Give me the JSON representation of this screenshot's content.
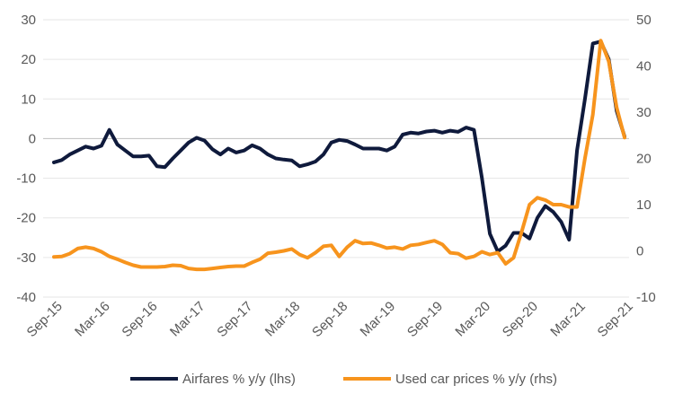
{
  "chart_data": {
    "type": "line",
    "x_ticks": [
      "Sep-15",
      "Mar-16",
      "Sep-16",
      "Mar-17",
      "Sep-17",
      "Mar-18",
      "Sep-18",
      "Mar-19",
      "Sep-19",
      "Mar-20",
      "Sep-20",
      "Mar-21",
      "Sep-21"
    ],
    "left_axis": {
      "ticks": [
        30,
        20,
        10,
        0,
        -10,
        -20,
        -30,
        -40
      ],
      "range": [
        -40,
        30
      ]
    },
    "right_axis": {
      "ticks": [
        50,
        40,
        30,
        20,
        10,
        0,
        -10
      ],
      "range": [
        -10,
        50
      ]
    },
    "grid": "horizontal",
    "zero_line": true,
    "legend_position": "bottom",
    "x": [
      "Sep-15",
      "Oct-15",
      "Nov-15",
      "Dec-15",
      "Jan-16",
      "Feb-16",
      "Mar-16",
      "Apr-16",
      "May-16",
      "Jun-16",
      "Jul-16",
      "Aug-16",
      "Sep-16",
      "Oct-16",
      "Nov-16",
      "Dec-16",
      "Jan-17",
      "Feb-17",
      "Mar-17",
      "Apr-17",
      "May-17",
      "Jun-17",
      "Jul-17",
      "Aug-17",
      "Sep-17",
      "Oct-17",
      "Nov-17",
      "Dec-17",
      "Jan-18",
      "Feb-18",
      "Mar-18",
      "Apr-18",
      "May-18",
      "Jun-18",
      "Jul-18",
      "Aug-18",
      "Sep-18",
      "Oct-18",
      "Nov-18",
      "Dec-18",
      "Jan-19",
      "Feb-19",
      "Mar-19",
      "Apr-19",
      "May-19",
      "Jun-19",
      "Jul-19",
      "Aug-19",
      "Sep-19",
      "Oct-19",
      "Nov-19",
      "Dec-19",
      "Jan-20",
      "Feb-20",
      "Mar-20",
      "Apr-20",
      "May-20",
      "Jun-20",
      "Jul-20",
      "Aug-20",
      "Sep-20",
      "Oct-20",
      "Nov-20",
      "Dec-20",
      "Jan-21",
      "Feb-21",
      "Mar-21",
      "Apr-21",
      "May-21",
      "Jun-21",
      "Jul-21",
      "Aug-21",
      "Sep-21"
    ],
    "series": [
      {
        "name": "Airfares % y/y (lhs)",
        "axis": "left",
        "color": "#0f1a3c",
        "values": [
          -6,
          -5.4,
          -4,
          -3,
          -2,
          -2.5,
          -1.8,
          2.2,
          -1.5,
          -3,
          -4.5,
          -4.5,
          -4.3,
          -7,
          -7.2,
          -5,
          -3,
          -1,
          0.2,
          -0.5,
          -2.7,
          -4,
          -2.5,
          -3.5,
          -3,
          -1.7,
          -2.5,
          -4,
          -5,
          -5.3,
          -5.5,
          -7,
          -6.5,
          -5.8,
          -4,
          -1,
          -0.3,
          -0.6,
          -1.5,
          -2.5,
          -2.5,
          -2.5,
          -3,
          -2,
          1,
          1.5,
          1.3,
          1.8,
          2,
          1.5,
          2,
          1.7,
          2.8,
          2.2,
          -10,
          -24,
          -28.5,
          -27,
          -23.8,
          -23.8,
          -25.2,
          -20,
          -17,
          -18.5,
          -21,
          -25.5,
          -3,
          10,
          24,
          24.5,
          20,
          7,
          0.5
        ]
      },
      {
        "name": "Used car prices % y/y (rhs)",
        "axis": "right",
        "color": "#f7941d",
        "values": [
          -1.3,
          -1.2,
          -0.6,
          0.5,
          0.8,
          0.5,
          -0.2,
          -1.2,
          -1.8,
          -2.5,
          -3.1,
          -3.5,
          -3.5,
          -3.5,
          -3.4,
          -3.1,
          -3.2,
          -3.8,
          -4,
          -4,
          -3.8,
          -3.6,
          -3.4,
          -3.3,
          -3.3,
          -2.5,
          -1.8,
          -0.5,
          -0.3,
          0,
          0.4,
          -0.8,
          -1.5,
          -0.4,
          1,
          1.2,
          -1.2,
          0.8,
          2.2,
          1.6,
          1.7,
          1.2,
          0.6,
          0.8,
          0.4,
          1.2,
          1.4,
          1.8,
          2.2,
          1.4,
          -0.4,
          -0.6,
          -1.6,
          -1.2,
          -0.2,
          -0.8,
          -0.4,
          -2.8,
          -1.5,
          4,
          10,
          11.5,
          11,
          10,
          10,
          9.5,
          9.5,
          20,
          29.5,
          45.5,
          41,
          31,
          24.5
        ]
      }
    ]
  },
  "legend": [
    {
      "label": "Airfares % y/y (lhs)",
      "color": "#0f1a3c"
    },
    {
      "label": "Used car prices % y/y (rhs)",
      "color": "#f7941d"
    }
  ]
}
